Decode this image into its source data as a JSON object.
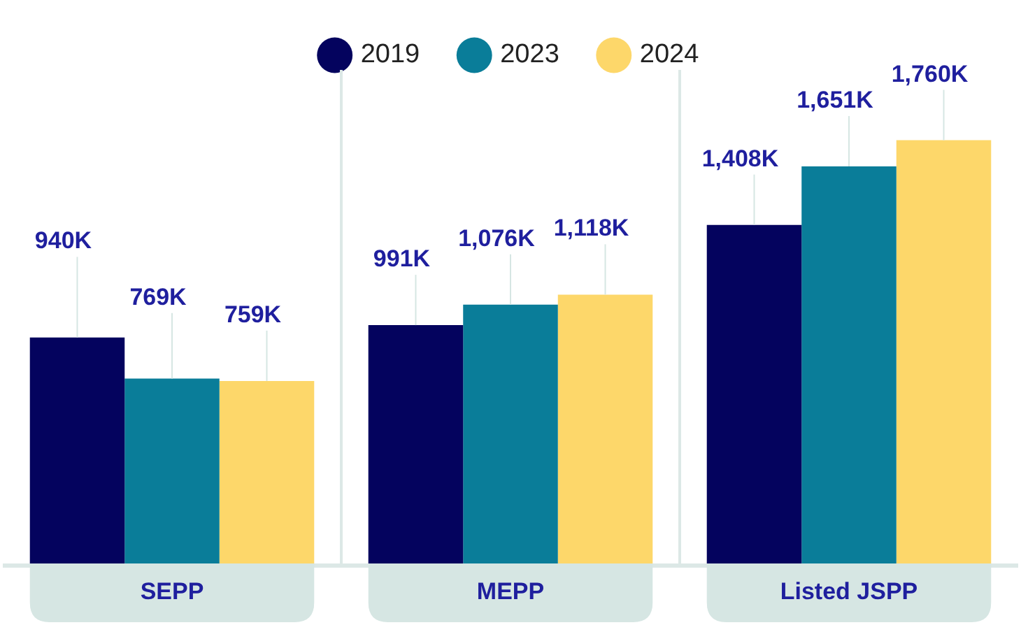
{
  "chart_data": {
    "type": "bar",
    "categories": [
      "SEPP",
      "MEPP",
      "Listed JSPP"
    ],
    "series": [
      {
        "name": "2019",
        "color": "#04035e",
        "values": [
          940,
          991,
          1408
        ],
        "value_labels": [
          "940K",
          "991K",
          "1,408K"
        ]
      },
      {
        "name": "2023",
        "color": "#0a7d99",
        "values": [
          769,
          1076,
          1651
        ],
        "value_labels": [
          "769K",
          "1,076K",
          "1,651K"
        ]
      },
      {
        "name": "2024",
        "color": "#fdd76a",
        "values": [
          759,
          1118,
          1760
        ],
        "value_labels": [
          "759K",
          "1,118K",
          "1,760K"
        ]
      }
    ],
    "legend": "top"
  }
}
